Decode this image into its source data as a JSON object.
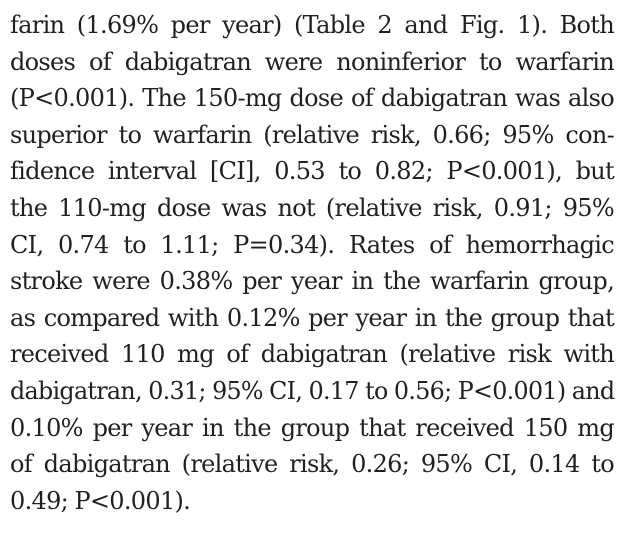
{
  "paragraph": {
    "lines": [
      "farin (1.69% per year) (Table 2 and Fig. 1). Both",
      "doses of dabigatran were noninferior to warfarin",
      "(P<0.001). The 150-mg dose of dabigatran was also",
      "superior to warfarin (relative risk, 0.66; 95% con-",
      "fidence interval [CI], 0.53 to 0.82; P<0.001), but",
      "the 110-mg dose was not (relative risk, 0.91; 95%",
      "CI, 0.74 to 1.11; P=0.34). Rates of hemorrhagic",
      "stroke were 0.38% per year in the warfarin group,",
      "as compared with 0.12% per year in the group that",
      "received 110 mg of dabigatran (relative risk with",
      "dabigatran, 0.31; 95% CI, 0.17 to 0.56; P<0.001) and",
      "0.10% per year in the group that received 150 mg",
      "of dabigatran (relative risk, 0.26; 95% CI, 0.14 to",
      "0.49; P<0.001)."
    ]
  }
}
